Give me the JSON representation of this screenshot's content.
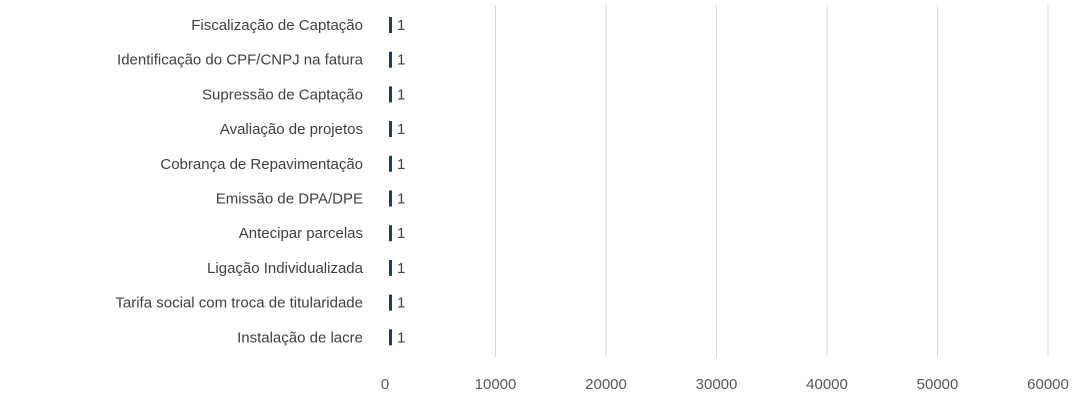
{
  "chart_data": {
    "type": "bar",
    "orientation": "horizontal",
    "categories": [
      "Fiscalização de Captação",
      "Identificação do CPF/CNPJ na fatura",
      "Supressão de Captação",
      "Avaliação de projetos",
      "Cobrança de Repavimentação",
      "Emissão de DPA/DPE",
      "Antecipar parcelas",
      "Ligação Individualizada",
      "Tarifa social com troca de titularidade",
      "Instalação de lacre"
    ],
    "values": [
      1,
      1,
      1,
      1,
      1,
      1,
      1,
      1,
      1,
      1
    ],
    "data_labels": [
      "1",
      "1",
      "1",
      "1",
      "1",
      "1",
      "1",
      "1",
      "1",
      "1"
    ],
    "xlim": [
      0,
      60000
    ],
    "x_ticks": [
      0,
      10000,
      20000,
      30000,
      40000,
      50000,
      60000
    ],
    "x_tick_labels": [
      "0",
      "10000",
      "20000",
      "30000",
      "40000",
      "50000",
      "60000"
    ],
    "grid": "vertical",
    "legend": "none",
    "title": "",
    "xlabel": "",
    "ylabel": "",
    "colors": {
      "bar": "#1f3b57",
      "gridline": "#d9d9d9",
      "text": "#404040"
    }
  }
}
